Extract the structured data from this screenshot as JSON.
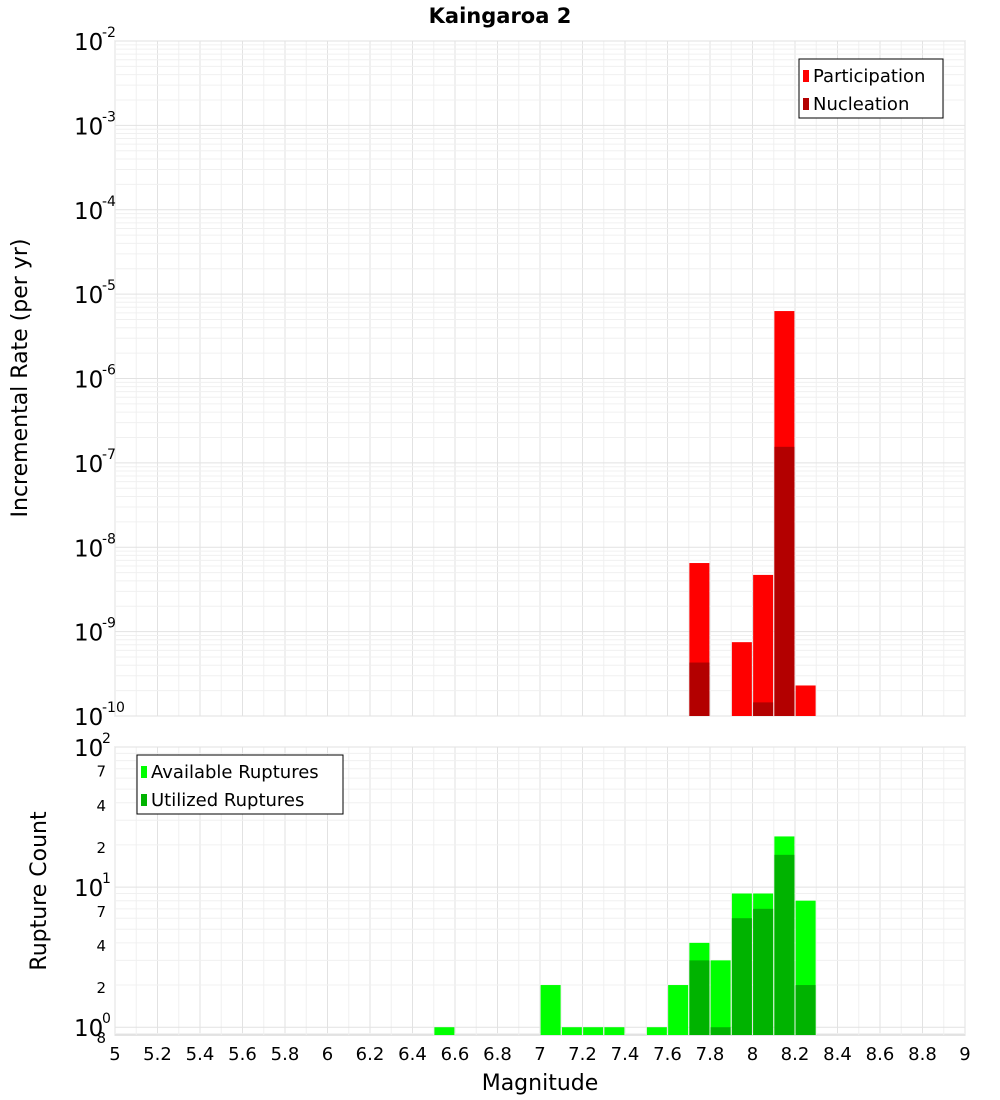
{
  "title": "Kaingaroa 2",
  "chart_data": [
    {
      "type": "bar",
      "ylabel": "Incremental Rate (per yr)",
      "yscale": "log",
      "ylim": [
        1e-10,
        0.01
      ],
      "xlim": [
        5,
        9
      ],
      "y_tick_labels": [
        {
          "value": 1e-10,
          "base": "10",
          "exp": "-10"
        },
        {
          "value": 1e-09,
          "base": "10",
          "exp": "-9"
        },
        {
          "value": 1e-08,
          "base": "10",
          "exp": "-8"
        },
        {
          "value": 1e-07,
          "base": "10",
          "exp": "-7"
        },
        {
          "value": 1e-06,
          "base": "10",
          "exp": "-6"
        },
        {
          "value": 1e-05,
          "base": "10",
          "exp": "-5"
        },
        {
          "value": 0.0001,
          "base": "10",
          "exp": "-4"
        },
        {
          "value": 0.001,
          "base": "10",
          "exp": "-3"
        },
        {
          "value": 0.01,
          "base": "10",
          "exp": "-2"
        }
      ],
      "legend_position": "top-right",
      "grid": true,
      "series": [
        {
          "name": "Participation",
          "color": "#ff0000",
          "x": [
            7.75,
            7.95,
            8.05,
            8.15,
            8.25
          ],
          "values": [
            6.5e-09,
            7.5e-10,
            4.7e-09,
            6.3e-06,
            2.3e-10
          ]
        },
        {
          "name": "Nucleation",
          "color": "#b30000",
          "x": [
            7.75,
            8.05,
            8.15
          ],
          "values": [
            4.3e-10,
            1.45e-10,
            1.55e-07
          ]
        }
      ]
    },
    {
      "type": "bar",
      "xlabel": "Magnitude",
      "ylabel": "Rupture Count",
      "yscale": "log",
      "ylim": [
        0.88,
        100
      ],
      "xlim": [
        5,
        9
      ],
      "x_ticks": [
        "5",
        "5.2",
        "5.4",
        "5.6",
        "5.8",
        "6",
        "6.2",
        "6.4",
        "6.6",
        "6.8",
        "7",
        "7.2",
        "7.4",
        "7.6",
        "7.8",
        "8",
        "8.2",
        "8.4",
        "8.6",
        "8.8",
        "9"
      ],
      "y_tick_labels": [
        {
          "value": 1,
          "base": "10",
          "exp": "0"
        },
        {
          "value": 10,
          "base": "10",
          "exp": "1"
        },
        {
          "value": 100,
          "base": "10",
          "exp": "2"
        }
      ],
      "y_minor_tick_labels": [
        {
          "value": 0.88,
          "label": "8"
        },
        {
          "value": 2,
          "label": "2"
        },
        {
          "value": 4,
          "label": "4"
        },
        {
          "value": 7,
          "label": "7"
        },
        {
          "value": 20,
          "label": "2"
        },
        {
          "value": 40,
          "label": "4"
        },
        {
          "value": 70,
          "label": "7"
        }
      ],
      "legend_position": "top-left",
      "grid": true,
      "series": [
        {
          "name": "Available Ruptures",
          "color": "#00ff00",
          "x": [
            6.55,
            7.05,
            7.15,
            7.25,
            7.35,
            7.55,
            7.65,
            7.75,
            7.85,
            7.95,
            8.05,
            8.15,
            8.25
          ],
          "values": [
            1,
            2,
            1,
            1,
            1,
            1,
            2,
            4,
            3,
            9,
            9,
            23,
            8
          ]
        },
        {
          "name": "Utilized Ruptures",
          "color": "#00b300",
          "x": [
            7.75,
            7.85,
            7.95,
            8.05,
            8.15,
            8.25
          ],
          "values": [
            3,
            1,
            6,
            7,
            17,
            2
          ]
        }
      ]
    }
  ]
}
